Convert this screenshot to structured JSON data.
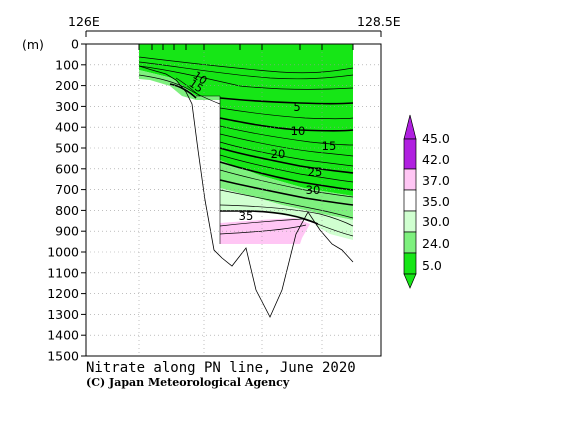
{
  "chart_data": {
    "type": "contour",
    "title": "Nitrate along PN line, June 2020",
    "credit": "(C) Japan Meteorological Agency",
    "x_labels": [
      "126E",
      "128.5E"
    ],
    "ylabel": "(m)",
    "ylim": [
      0,
      1500
    ],
    "yticks": [
      0,
      100,
      200,
      300,
      400,
      500,
      600,
      700,
      800,
      900,
      1000,
      1100,
      1200,
      1300,
      1400,
      1500
    ],
    "grid": true,
    "contour_labels": [
      {
        "text": "5",
        "depth": 290
      },
      {
        "text": "10",
        "depth": 405
      },
      {
        "text": "15",
        "depth": 470
      },
      {
        "text": "20",
        "depth": 520
      },
      {
        "text": "25",
        "depth": 595
      },
      {
        "text": "30",
        "depth": 680
      },
      {
        "text": "35",
        "depth": 835
      },
      {
        "text": "15",
        "depth": 205
      },
      {
        "text": "10",
        "depth": 175
      }
    ],
    "colorbar": {
      "labels": [
        "45.0",
        "42.0",
        "37.0",
        "35.0",
        "30.0",
        "24.0",
        "5.0"
      ],
      "colors": [
        "#b020e0",
        "#d070f0",
        "#ffc6f4",
        "#ffffff",
        "#d0ffd0",
        "#7ef07e",
        "#16e616"
      ]
    },
    "fill_colors": {
      "lt24": "#16e616",
      "24_30": "#7ef07e",
      "30_35": "#d0ffd0",
      "35_37": "#ffffff",
      "37_42": "#ffc6f4"
    }
  }
}
